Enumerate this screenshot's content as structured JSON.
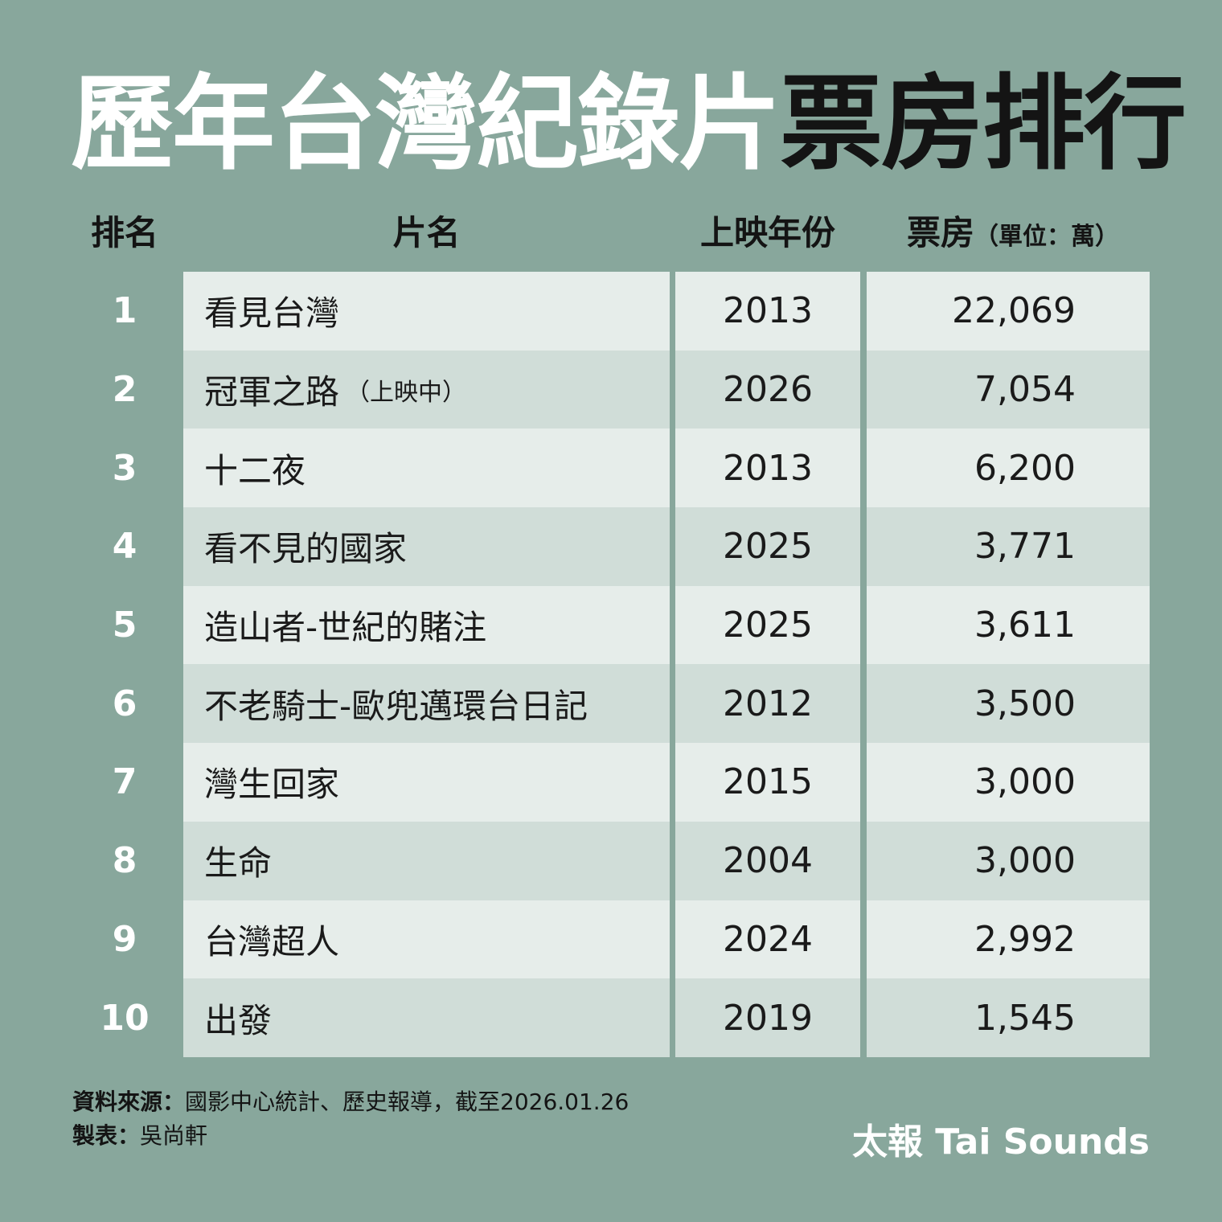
{
  "title": {
    "white_part": "歷年台灣紀錄片",
    "black_part": "票房排行"
  },
  "headers": {
    "rank": "排名",
    "name": "片名",
    "year": "上映年份",
    "box": "票房",
    "box_unit": "（單位：萬）"
  },
  "rows": [
    {
      "rank": "1",
      "name": "看見台灣",
      "note": "",
      "year": "2013",
      "box": "22,069"
    },
    {
      "rank": "2",
      "name": "冠軍之路",
      "note": "（上映中）",
      "year": "2026",
      "box": "7,054"
    },
    {
      "rank": "3",
      "name": "十二夜",
      "note": "",
      "year": "2013",
      "box": "6,200"
    },
    {
      "rank": "4",
      "name": "看不見的國家",
      "note": "",
      "year": "2025",
      "box": "3,771"
    },
    {
      "rank": "5",
      "name": "造山者-世紀的賭注",
      "note": "",
      "year": "2025",
      "box": "3,611"
    },
    {
      "rank": "6",
      "name": "不老騎士-歐兜邁環台日記",
      "note": "",
      "year": "2012",
      "box": "3,500"
    },
    {
      "rank": "7",
      "name": "灣生回家",
      "note": "",
      "year": "2015",
      "box": "3,000"
    },
    {
      "rank": "8",
      "name": "生命",
      "note": "",
      "year": "2004",
      "box": "3,000"
    },
    {
      "rank": "9",
      "name": "台灣超人",
      "note": "",
      "year": "2024",
      "box": "2,992"
    },
    {
      "rank": "10",
      "name": "出發",
      "note": "",
      "year": "2019",
      "box": "1,545"
    }
  ],
  "footer": {
    "source_label": "資料來源：",
    "source_text": "國影中心統計、歷史報導，截至2026.01.26",
    "maker_label": "製表：",
    "maker_text": "吳尚軒"
  },
  "brand": "太報 Tai Sounds"
}
